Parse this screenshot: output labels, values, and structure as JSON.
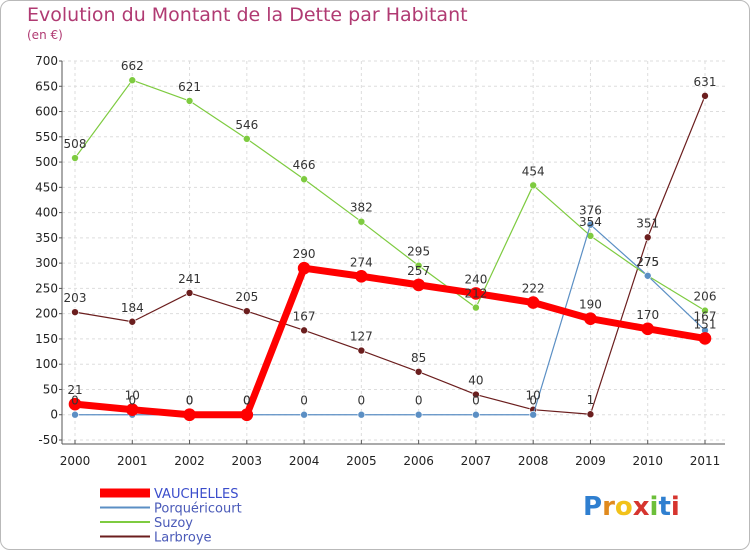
{
  "title": "Evolution du Montant de la Dette par Habitant",
  "subtitle": "(en €)",
  "brand": "Proxiti",
  "chart_data": {
    "type": "line",
    "x": [
      "2000",
      "2001",
      "2002",
      "2003",
      "2004",
      "2005",
      "2006",
      "2007",
      "2008",
      "2009",
      "2010",
      "2011"
    ],
    "ylim": [
      -50,
      700
    ],
    "yticks": [
      -50,
      0,
      50,
      100,
      150,
      200,
      250,
      300,
      350,
      400,
      450,
      500,
      550,
      600,
      650,
      700
    ],
    "grid": true,
    "legend_position": "bottom-left",
    "series": [
      {
        "name": "VAUCHELLES",
        "color": "#ff0000",
        "values": [
          21,
          10,
          0,
          0,
          290,
          274,
          257,
          240,
          222,
          190,
          170,
          151
        ],
        "labels": [
          "21",
          "10",
          "0",
          "0",
          "290",
          "274",
          "257",
          "240",
          "222",
          "190",
          "170",
          "151"
        ]
      },
      {
        "name": "Porquéricourt",
        "color": "#5b8fc4",
        "values": [
          0,
          0,
          0,
          0,
          0,
          0,
          0,
          0,
          0,
          376,
          275,
          167
        ],
        "labels": [
          "0",
          "0",
          "0",
          "0",
          "0",
          "0",
          "0",
          "0",
          "0",
          "376",
          "275",
          "167"
        ]
      },
      {
        "name": "Suzoy",
        "color": "#7ecb40",
        "values": [
          508,
          662,
          621,
          546,
          466,
          382,
          295,
          212,
          454,
          354,
          275,
          206
        ],
        "labels": [
          "508",
          "662",
          "621",
          "546",
          "466",
          "382",
          "295",
          "212",
          "454",
          "354",
          "275",
          "206"
        ]
      },
      {
        "name": "Larbroye",
        "color": "#6b1e1e",
        "values": [
          203,
          184,
          241,
          205,
          167,
          127,
          85,
          40,
          10,
          1,
          351,
          631
        ],
        "labels": [
          "203",
          "184",
          "241",
          "205",
          "167",
          "127",
          "85",
          "40",
          "10",
          "1",
          "351",
          "631"
        ]
      }
    ]
  }
}
